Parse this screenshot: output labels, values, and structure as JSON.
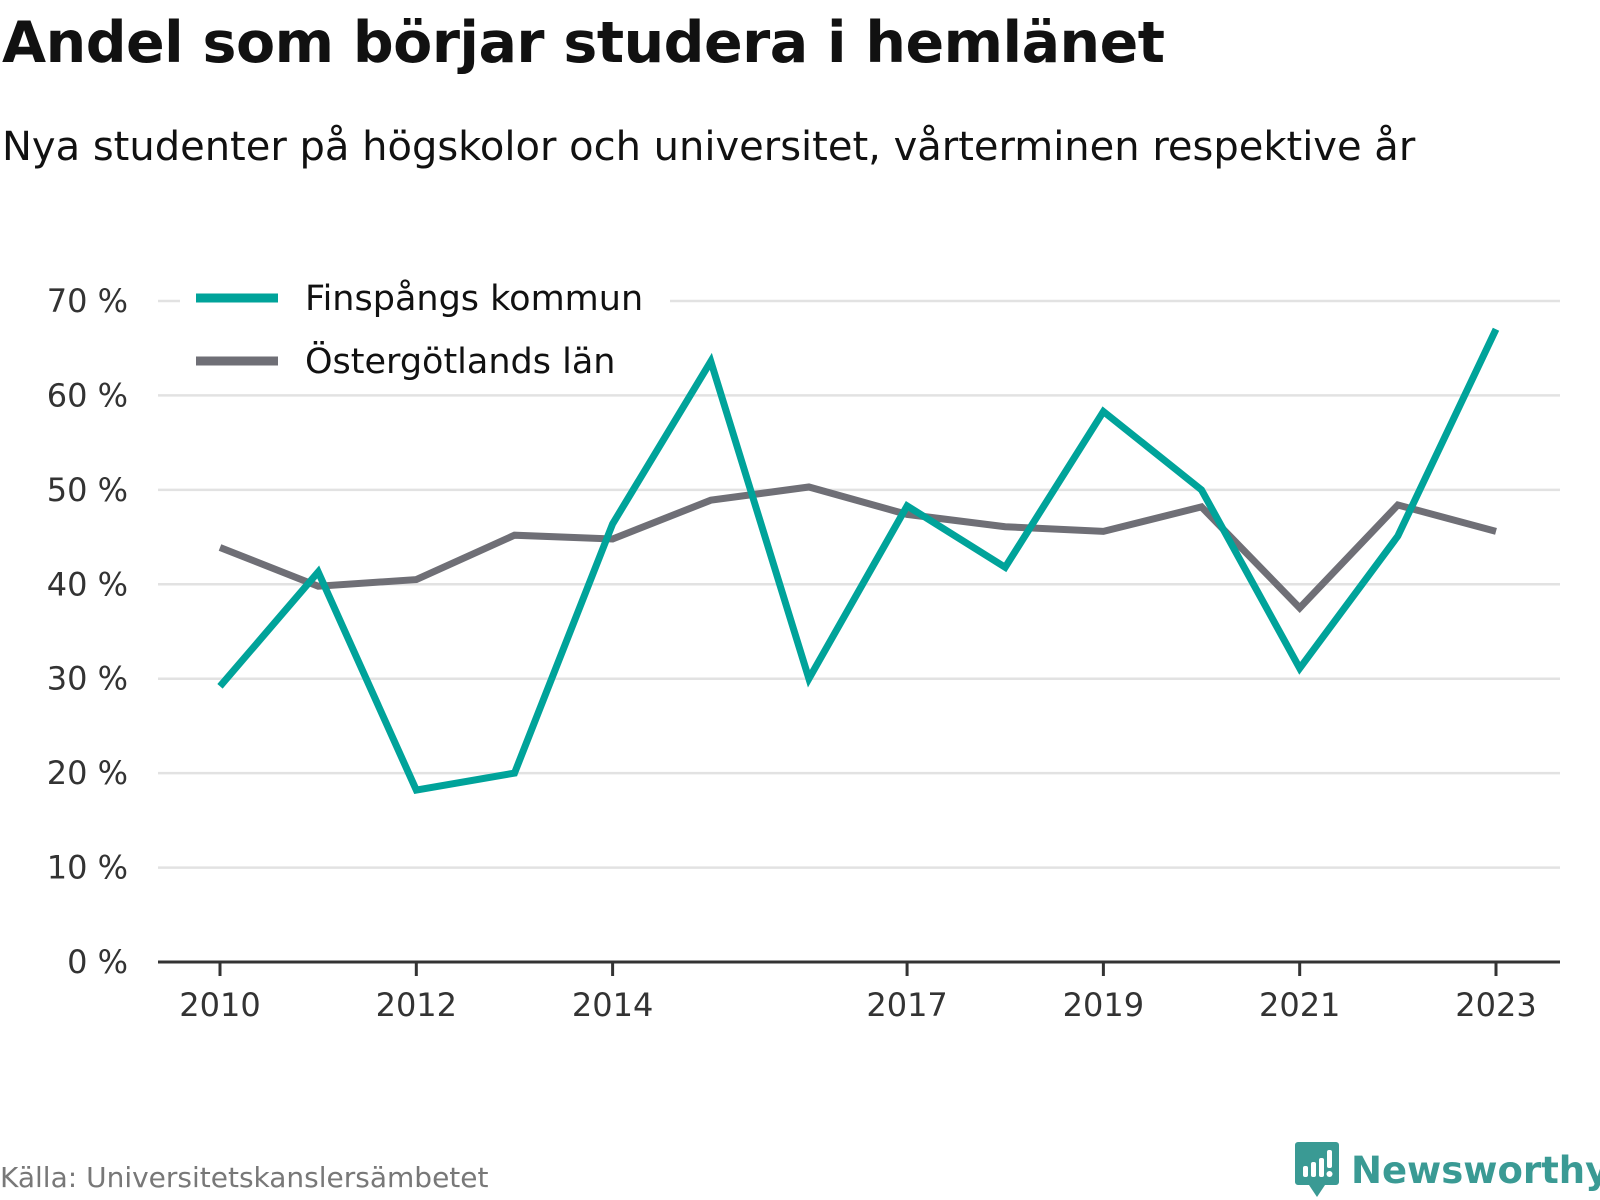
{
  "title": "Andel som börjar studera i hemlänet",
  "subtitle": "Nya studenter på högskolor och universitet, vårterminen respektive år",
  "source": "Källa: Universitetskanslersämbetet",
  "brand": {
    "name": "Newsworthy",
    "icon": "newsworthy-logo-icon",
    "color": "#3a9a94"
  },
  "chart_data": {
    "type": "line",
    "x": [
      2010,
      2011,
      2012,
      2013,
      2014,
      2015,
      2016,
      2017,
      2018,
      2019,
      2020,
      2021,
      2022,
      2023
    ],
    "x_tick_labels": [
      "2010",
      "2012",
      "2014",
      "2017",
      "2019",
      "2021",
      "2023"
    ],
    "y_tick_labels": [
      "0 %",
      "10 %",
      "20 %",
      "30 %",
      "40 %",
      "50 %",
      "60 %",
      "70 %"
    ],
    "y_ticks": [
      0,
      10,
      20,
      30,
      40,
      50,
      60,
      70
    ],
    "ylim": [
      0,
      70
    ],
    "grid": true,
    "legend_position": "top-left",
    "series": [
      {
        "name": "Finspångs kommun",
        "color": "#00a39a",
        "values": [
          29.2,
          41.3,
          18.2,
          20.0,
          46.4,
          63.6,
          30.0,
          48.3,
          41.8,
          58.3,
          50.0,
          31.1,
          45.1,
          67.0
        ]
      },
      {
        "name": "Östergötlands län",
        "color": "#6f6f76",
        "values": [
          43.9,
          39.8,
          40.5,
          45.2,
          44.8,
          48.9,
          50.3,
          47.4,
          46.1,
          45.6,
          48.2,
          37.5,
          48.4,
          45.6
        ]
      }
    ]
  }
}
